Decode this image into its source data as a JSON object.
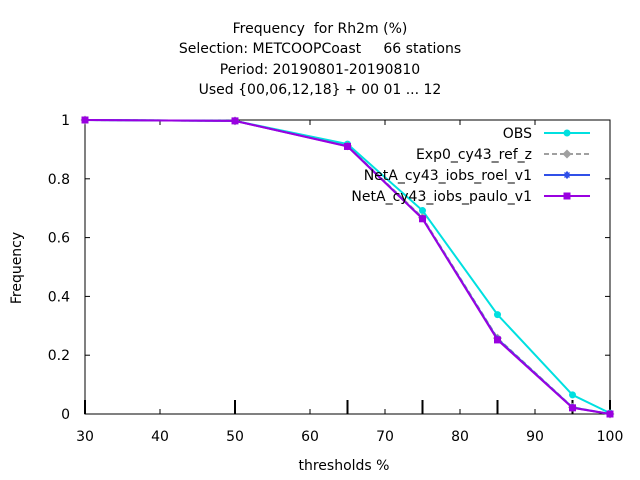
{
  "chart_data": {
    "type": "line",
    "title_lines": [
      "Frequency  for Rh2m (%)",
      "Selection: METCOOPCoast     66 stations",
      "Period: 20190801-20190810",
      "Used {00,06,12,18} + 00 01 ... 12"
    ],
    "xlabel": "thresholds %",
    "ylabel": "Frequency",
    "xlim": [
      30,
      100
    ],
    "ylim": [
      0,
      1
    ],
    "xticks": [
      30,
      40,
      50,
      60,
      70,
      80,
      90,
      100
    ],
    "yticks": [
      0,
      0.2,
      0.4,
      0.6,
      0.8,
      1
    ],
    "ytick_labels": [
      "0",
      "0.2",
      "0.4",
      "0.6",
      "0.8",
      "1"
    ],
    "threshold_marks": [
      30,
      50,
      65,
      75,
      85,
      95,
      100
    ],
    "grid": false,
    "legend_position": "top-right",
    "x": [
      30,
      50,
      65,
      75,
      85,
      95,
      100
    ],
    "series": [
      {
        "name": "OBS",
        "color": "#00e0e0",
        "dash": "",
        "marker": "circle",
        "values": [
          1.0,
          0.997,
          0.918,
          0.692,
          0.338,
          0.065,
          0.003
        ]
      },
      {
        "name": "Exp0_cy43_ref_z",
        "color": "#a0a0a0",
        "dash": "5,3",
        "marker": "diamond",
        "values": [
          1.0,
          0.997,
          0.912,
          0.668,
          0.258,
          0.023,
          0.0
        ]
      },
      {
        "name": "NetA_cy43_iobs_roel_v1",
        "color": "#3050e8",
        "dash": "",
        "marker": "star",
        "values": [
          1.0,
          0.997,
          0.911,
          0.665,
          0.255,
          0.022,
          0.0
        ]
      },
      {
        "name": "NetA_cy43_iobs_paulo_v1",
        "color": "#9900e0",
        "dash": "",
        "marker": "square",
        "values": [
          1.0,
          0.997,
          0.91,
          0.664,
          0.252,
          0.021,
          0.0
        ]
      }
    ]
  }
}
